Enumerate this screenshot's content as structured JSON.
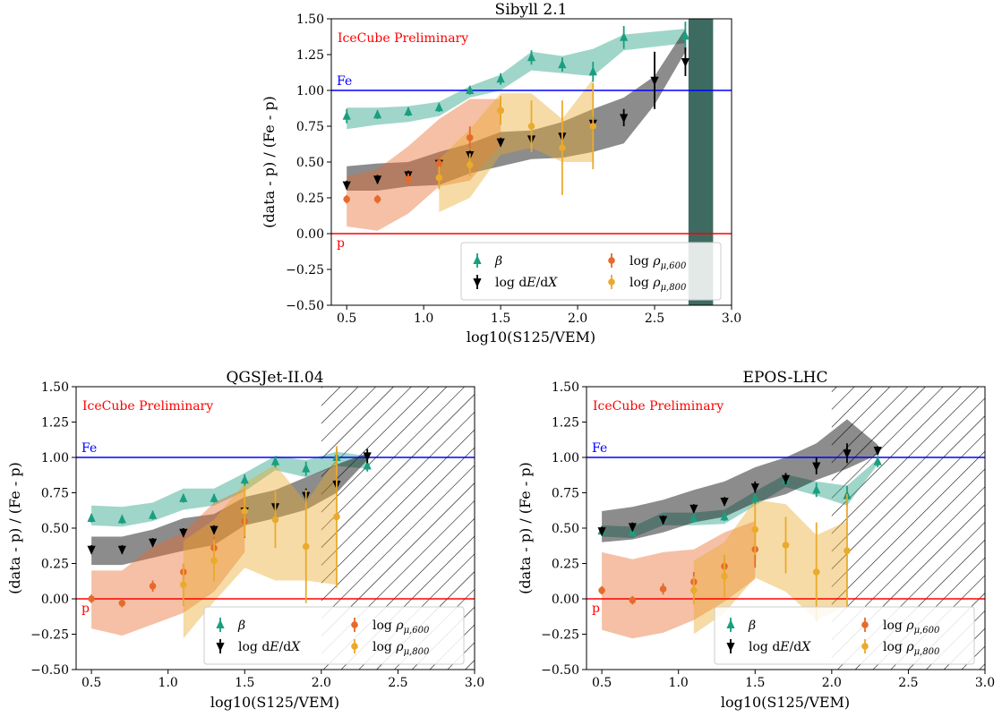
{
  "chart_data": [
    {
      "type": "scatter",
      "title": "Sibyll 2.1",
      "xlabel": "log10(S125/VEM)",
      "ylabel": "(data - p) / (Fe - p)",
      "annotation": "IceCube Preliminary",
      "xlim": [
        0.4,
        3.0
      ],
      "ylim": [
        -0.5,
        1.5
      ],
      "xticks": [
        "0.5",
        "1.0",
        "1.5",
        "2.0",
        "2.5",
        "3.0"
      ],
      "yticks": [
        "−0.50",
        "−0.25",
        "0.00",
        "0.25",
        "0.50",
        "0.75",
        "1.00",
        "1.25",
        "1.50"
      ],
      "reference_lines": [
        {
          "label": "Fe",
          "y": 1.0,
          "color": "#0000ff"
        },
        {
          "label": "p",
          "y": 0.0,
          "color": "#ff0000"
        }
      ],
      "hatch_from_x": null,
      "legend_position": "lower-right",
      "series": [
        {
          "name": "β",
          "marker": "triangle-up",
          "color": "#1a9e7f",
          "x": [
            0.5,
            0.7,
            0.9,
            1.1,
            1.3,
            1.5,
            1.7,
            1.9,
            2.1,
            2.3,
            2.7
          ],
          "y": [
            0.82,
            0.83,
            0.85,
            0.88,
            1.0,
            1.08,
            1.23,
            1.18,
            1.13,
            1.37,
            1.38
          ],
          "yerr": [
            0.05,
            0.03,
            0.03,
            0.03,
            0.03,
            0.04,
            0.05,
            0.05,
            0.07,
            0.08,
            0.1
          ],
          "band_lower": [
            0.73,
            0.76,
            0.78,
            0.82,
            0.95,
            1.0,
            1.14,
            1.12,
            1.1,
            1.28,
            1.33
          ],
          "band_upper": [
            0.88,
            0.88,
            0.89,
            0.92,
            1.03,
            1.11,
            1.27,
            1.24,
            1.29,
            1.39,
            1.43
          ]
        },
        {
          "name": "log dE/dX",
          "marker": "triangle-down",
          "color": "#000000",
          "x": [
            0.5,
            0.7,
            0.9,
            1.1,
            1.3,
            1.5,
            1.7,
            1.9,
            2.1,
            2.3,
            2.5,
            2.7
          ],
          "y": [
            0.34,
            0.38,
            0.41,
            0.49,
            0.55,
            0.64,
            0.66,
            0.68,
            0.77,
            0.81,
            1.07,
            1.2
          ],
          "yerr": [
            0.03,
            0.03,
            0.03,
            0.03,
            0.03,
            0.03,
            0.03,
            0.03,
            0.05,
            0.06,
            0.2,
            0.1
          ],
          "band_lower": [
            0.3,
            0.3,
            0.33,
            0.34,
            0.42,
            0.47,
            0.52,
            0.53,
            0.57,
            0.63,
            0.9,
            1.27
          ],
          "band_upper": [
            0.47,
            0.49,
            0.5,
            0.57,
            0.63,
            0.71,
            0.72,
            0.78,
            0.87,
            0.95,
            1.1,
            1.43
          ]
        },
        {
          "name": "log ρμ,600",
          "marker": "circle",
          "color": "#e66a2b",
          "x": [
            0.5,
            0.7,
            0.9,
            1.1,
            1.3,
            1.5
          ],
          "y": [
            0.24,
            0.24,
            0.38,
            0.49,
            0.67,
            0.86
          ],
          "yerr": [
            0.03,
            0.03,
            0.04,
            0.06,
            0.08,
            0.1
          ],
          "band_lower": [
            0.05,
            0.02,
            0.14,
            0.33,
            0.37,
            0.62
          ],
          "band_upper": [
            0.4,
            0.45,
            0.61,
            0.8,
            0.94,
            0.94
          ]
        },
        {
          "name": "log ρμ,800",
          "marker": "circle",
          "color": "#eaaa2c",
          "x": [
            1.1,
            1.3,
            1.5,
            1.7,
            1.9,
            2.1
          ],
          "y": [
            0.39,
            0.48,
            0.86,
            0.75,
            0.6,
            0.75
          ],
          "yerr": [
            0.08,
            0.08,
            0.1,
            0.18,
            0.33,
            0.3
          ],
          "band_lower": [
            0.15,
            0.25,
            0.55,
            0.6,
            0.5,
            0.5
          ],
          "band_upper": [
            0.52,
            0.73,
            0.98,
            0.98,
            0.8,
            1.08
          ]
        }
      ],
      "extra_band": {
        "color": "#3d6b62",
        "x": [
          2.72,
          2.88
        ],
        "y_lower": -0.5,
        "y_upper": 1.5
      }
    },
    {
      "type": "scatter",
      "title": "QGSJet-II.04",
      "xlabel": "log10(S125/VEM)",
      "ylabel": "(data - p) / (Fe - p)",
      "annotation": "IceCube Preliminary",
      "xlim": [
        0.4,
        3.0
      ],
      "ylim": [
        -0.5,
        1.5
      ],
      "xticks": [
        "0.5",
        "1.0",
        "1.5",
        "2.0",
        "2.5",
        "3.0"
      ],
      "yticks": [
        "−0.50",
        "−0.25",
        "0.00",
        "0.25",
        "0.50",
        "0.75",
        "1.00",
        "1.25",
        "1.50"
      ],
      "reference_lines": [
        {
          "label": "Fe",
          "y": 1.0,
          "color": "#0000ff"
        },
        {
          "label": "p",
          "y": 0.0,
          "color": "#ff0000"
        }
      ],
      "hatch_from_x": 2.0,
      "legend_position": "lower-right",
      "series": [
        {
          "name": "β",
          "marker": "triangle-up",
          "color": "#1a9e7f",
          "x": [
            0.5,
            0.7,
            0.9,
            1.1,
            1.3,
            1.5,
            1.7,
            1.9,
            2.1,
            2.3
          ],
          "y": [
            0.57,
            0.56,
            0.59,
            0.71,
            0.71,
            0.84,
            0.97,
            0.92,
            1.0,
            0.94
          ],
          "yerr": [
            0.03,
            0.03,
            0.03,
            0.03,
            0.03,
            0.04,
            0.04,
            0.05,
            0.06,
            0.04
          ],
          "band_lower": [
            0.52,
            0.51,
            0.55,
            0.63,
            0.66,
            0.76,
            0.91,
            0.86,
            0.94,
            0.92
          ],
          "band_upper": [
            0.66,
            0.65,
            0.68,
            0.78,
            0.78,
            0.89,
            1.01,
            0.98,
            1.04,
            1.01
          ]
        },
        {
          "name": "log dE/dX",
          "marker": "triangle-down",
          "color": "#000000",
          "x": [
            0.5,
            0.7,
            0.9,
            1.1,
            1.3,
            1.5,
            1.7,
            1.9,
            2.1,
            2.3
          ],
          "y": [
            0.35,
            0.35,
            0.4,
            0.47,
            0.49,
            0.62,
            0.65,
            0.73,
            0.81,
            1.01
          ],
          "yerr": [
            0.03,
            0.03,
            0.03,
            0.03,
            0.03,
            0.04,
            0.04,
            0.05,
            0.06,
            0.05
          ],
          "band_lower": [
            0.24,
            0.24,
            0.29,
            0.34,
            0.38,
            0.52,
            0.57,
            0.63,
            0.75,
            0.98
          ],
          "band_upper": [
            0.44,
            0.44,
            0.49,
            0.57,
            0.6,
            0.72,
            0.77,
            0.86,
            0.95,
            1.03
          ]
        },
        {
          "name": "log ρμ,600",
          "marker": "circle",
          "color": "#e66a2b",
          "x": [
            0.5,
            0.7,
            0.9,
            1.1,
            1.3,
            1.5
          ],
          "y": [
            0.0,
            -0.03,
            0.09,
            0.19,
            0.36,
            0.55
          ],
          "yerr": [
            0.03,
            0.03,
            0.04,
            0.06,
            0.08,
            0.12
          ],
          "band_lower": [
            -0.21,
            -0.26,
            -0.18,
            -0.1,
            0.05,
            0.33
          ],
          "band_upper": [
            0.2,
            0.2,
            0.37,
            0.47,
            0.68,
            0.78
          ]
        },
        {
          "name": "log ρμ,800",
          "marker": "circle",
          "color": "#eaaa2c",
          "x": [
            1.1,
            1.3,
            1.5,
            1.7,
            1.9,
            2.1
          ],
          "y": [
            0.1,
            0.27,
            0.62,
            0.56,
            0.37,
            0.58
          ],
          "yerr": [
            0.15,
            0.15,
            0.18,
            0.2,
            0.4,
            0.5
          ],
          "band_lower": [
            -0.28,
            -0.02,
            0.22,
            0.13,
            0.13,
            0.1
          ],
          "band_upper": [
            0.41,
            0.56,
            0.82,
            0.95,
            0.68,
            1.0
          ]
        }
      ],
      "extra_band": null
    },
    {
      "type": "scatter",
      "title": "EPOS-LHC",
      "xlabel": "log10(S125/VEM)",
      "ylabel": "(data - p) / (Fe - p)",
      "annotation": "IceCube Preliminary",
      "xlim": [
        0.4,
        3.0
      ],
      "ylim": [
        -0.5,
        1.5
      ],
      "xticks": [
        "0.5",
        "1.0",
        "1.5",
        "2.0",
        "2.5",
        "3.0"
      ],
      "yticks": [
        "−0.50",
        "−0.25",
        "0.00",
        "0.25",
        "0.50",
        "0.75",
        "1.00",
        "1.25",
        "1.50"
      ],
      "reference_lines": [
        {
          "label": "Fe",
          "y": 1.0,
          "color": "#0000ff"
        },
        {
          "label": "p",
          "y": 0.0,
          "color": "#ff0000"
        }
      ],
      "hatch_from_x": 2.0,
      "legend_position": "lower-right",
      "series": [
        {
          "name": "β",
          "marker": "triangle-up",
          "color": "#1a9e7f",
          "x": [
            0.5,
            0.7,
            0.9,
            1.1,
            1.3,
            1.5,
            1.7,
            1.9,
            2.1,
            2.3
          ],
          "y": [
            0.48,
            0.47,
            0.57,
            0.57,
            0.58,
            0.71,
            0.84,
            0.77,
            0.73,
            0.97
          ],
          "yerr": [
            0.03,
            0.03,
            0.03,
            0.03,
            0.03,
            0.04,
            0.04,
            0.05,
            0.07,
            0.04
          ],
          "band_lower": [
            0.44,
            0.43,
            0.52,
            0.52,
            0.53,
            0.66,
            0.79,
            0.73,
            0.66,
            0.95
          ],
          "band_upper": [
            0.52,
            0.51,
            0.61,
            0.61,
            0.63,
            0.76,
            0.88,
            0.83,
            0.8,
            0.99
          ]
        },
        {
          "name": "log dE/dX",
          "marker": "triangle-down",
          "color": "#000000",
          "x": [
            0.5,
            0.7,
            0.9,
            1.1,
            1.3,
            1.5,
            1.7,
            1.9,
            2.1,
            2.3
          ],
          "y": [
            0.48,
            0.51,
            0.56,
            0.64,
            0.69,
            0.79,
            0.85,
            0.94,
            1.03,
            1.05
          ],
          "yerr": [
            0.03,
            0.03,
            0.03,
            0.03,
            0.03,
            0.04,
            0.04,
            0.06,
            0.07,
            0.03
          ],
          "band_lower": [
            0.4,
            0.42,
            0.47,
            0.54,
            0.58,
            0.68,
            0.74,
            0.84,
            0.92,
            1.02
          ],
          "band_upper": [
            0.62,
            0.65,
            0.7,
            0.77,
            0.83,
            0.93,
            1.0,
            1.1,
            1.27,
            1.09
          ]
        },
        {
          "name": "log ρμ,600",
          "marker": "circle",
          "color": "#e66a2b",
          "x": [
            0.5,
            0.7,
            0.9,
            1.1,
            1.3,
            1.5
          ],
          "y": [
            0.06,
            -0.01,
            0.07,
            0.12,
            0.23,
            0.35
          ],
          "yerr": [
            0.03,
            0.03,
            0.04,
            0.07,
            0.08,
            0.13
          ],
          "band_lower": [
            -0.22,
            -0.28,
            -0.24,
            -0.15,
            -0.02,
            0.14
          ],
          "band_upper": [
            0.33,
            0.28,
            0.33,
            0.35,
            0.47,
            0.55
          ]
        },
        {
          "name": "log ρμ,800",
          "marker": "circle",
          "color": "#eaaa2c",
          "x": [
            1.1,
            1.3,
            1.5,
            1.7,
            1.9,
            2.1
          ],
          "y": [
            0.06,
            0.16,
            0.49,
            0.38,
            0.19,
            0.34
          ],
          "yerr": [
            0.1,
            0.15,
            0.18,
            0.2,
            0.35,
            0.4
          ],
          "band_lower": [
            -0.25,
            -0.1,
            0.15,
            0.05,
            -0.15,
            -0.05
          ],
          "band_upper": [
            0.27,
            0.4,
            0.7,
            0.67,
            0.45,
            0.55
          ]
        }
      ],
      "extra_band": null
    }
  ]
}
